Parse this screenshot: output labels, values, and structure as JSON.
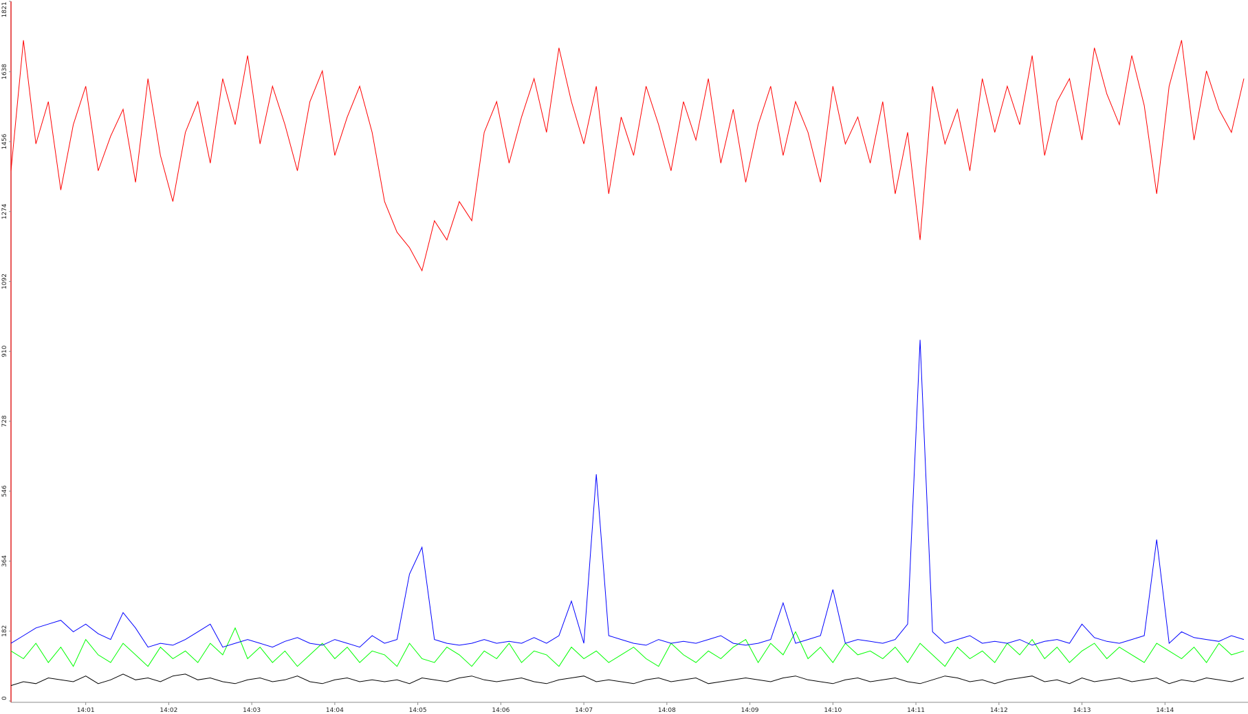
{
  "chart_data": {
    "type": "line",
    "x": [
      0.1,
      0.25,
      0.4,
      0.55,
      0.7,
      0.85,
      1,
      1.15,
      1.3,
      1.45,
      1.6,
      1.75,
      1.9,
      2.05,
      2.2,
      2.35,
      2.5,
      2.65,
      2.8,
      2.95,
      3.1,
      3.25,
      3.4,
      3.55,
      3.7,
      3.85,
      4,
      4.15,
      4.3,
      4.45,
      4.6,
      4.75,
      4.9,
      5.05,
      5.2,
      5.35,
      5.5,
      5.65,
      5.8,
      5.95,
      6.1,
      6.25,
      6.4,
      6.55,
      6.7,
      6.85,
      7,
      7.15,
      7.3,
      7.45,
      7.6,
      7.75,
      7.9,
      8.05,
      8.2,
      8.35,
      8.5,
      8.65,
      8.8,
      8.95,
      9.1,
      9.25,
      9.4,
      9.55,
      9.7,
      9.85,
      10,
      10.15,
      10.3,
      10.45,
      10.6,
      10.75,
      10.9,
      11.05,
      11.2,
      11.35,
      11.5,
      11.65,
      11.8,
      11.95,
      12.1,
      12.25,
      12.4,
      12.55,
      12.7,
      12.85,
      13,
      13.15,
      13.3,
      13.45,
      13.6,
      13.75,
      13.9,
      14.05,
      14.2,
      14.35,
      14.5,
      14.65,
      14.8,
      14.95
    ],
    "series": [
      {
        "color": "#ff0000",
        "values": [
          1380,
          1720,
          1450,
          1560,
          1330,
          1500,
          1600,
          1380,
          1470,
          1540,
          1350,
          1620,
          1420,
          1300,
          1480,
          1560,
          1400,
          1620,
          1500,
          1680,
          1450,
          1600,
          1500,
          1380,
          1560,
          1640,
          1420,
          1520,
          1600,
          1480,
          1300,
          1220,
          1180,
          1120,
          1250,
          1200,
          1300,
          1250,
          1480,
          1560,
          1400,
          1520,
          1620,
          1480,
          1700,
          1560,
          1450,
          1600,
          1320,
          1520,
          1420,
          1600,
          1500,
          1380,
          1560,
          1460,
          1620,
          1400,
          1540,
          1350,
          1500,
          1600,
          1420,
          1560,
          1480,
          1350,
          1600,
          1450,
          1520,
          1400,
          1560,
          1320,
          1480,
          1200,
          1600,
          1450,
          1540,
          1380,
          1620,
          1480,
          1600,
          1500,
          1680,
          1420,
          1560,
          1620,
          1460,
          1700,
          1580,
          1500,
          1680,
          1550,
          1320,
          1600,
          1720,
          1460,
          1640,
          1540,
          1480,
          1620
        ]
      },
      {
        "color": "#00ff00",
        "values": [
          130,
          110,
          150,
          100,
          140,
          90,
          160,
          120,
          100,
          150,
          120,
          90,
          140,
          110,
          130,
          100,
          150,
          120,
          190,
          110,
          140,
          100,
          130,
          90,
          120,
          150,
          110,
          140,
          100,
          130,
          120,
          90,
          150,
          110,
          100,
          140,
          120,
          90,
          130,
          110,
          150,
          100,
          130,
          120,
          90,
          140,
          110,
          130,
          100,
          120,
          140,
          110,
          90,
          150,
          120,
          100,
          130,
          110,
          140,
          160,
          100,
          150,
          120,
          180,
          110,
          140,
          100,
          150,
          120,
          130,
          110,
          140,
          100,
          150,
          120,
          90,
          140,
          110,
          130,
          100,
          150,
          120,
          160,
          110,
          140,
          100,
          130,
          150,
          110,
          140,
          120,
          100,
          150,
          130,
          110,
          140,
          100,
          150,
          120,
          130
        ]
      },
      {
        "color": "#0000ff",
        "values": [
          150,
          170,
          190,
          200,
          210,
          180,
          200,
          175,
          160,
          230,
          190,
          140,
          150,
          145,
          160,
          180,
          200,
          140,
          150,
          160,
          150,
          140,
          155,
          165,
          150,
          145,
          160,
          150,
          140,
          170,
          150,
          160,
          330,
          400,
          160,
          150,
          145,
          150,
          160,
          150,
          155,
          150,
          165,
          150,
          170,
          260,
          150,
          590,
          170,
          160,
          150,
          145,
          160,
          150,
          155,
          150,
          160,
          170,
          150,
          145,
          150,
          160,
          255,
          150,
          160,
          170,
          290,
          150,
          160,
          155,
          150,
          160,
          200,
          940,
          180,
          150,
          160,
          170,
          150,
          155,
          150,
          160,
          145,
          155,
          160,
          150,
          200,
          165,
          155,
          150,
          160,
          170,
          420,
          150,
          180,
          165,
          160,
          155,
          170,
          160
        ]
      },
      {
        "color": "#000000",
        "values": [
          40,
          50,
          45,
          60,
          55,
          50,
          65,
          45,
          55,
          70,
          55,
          60,
          50,
          65,
          70,
          55,
          60,
          50,
          45,
          55,
          60,
          50,
          55,
          65,
          50,
          45,
          55,
          60,
          50,
          55,
          50,
          55,
          45,
          60,
          55,
          50,
          60,
          65,
          55,
          50,
          55,
          60,
          50,
          45,
          55,
          60,
          65,
          50,
          55,
          50,
          45,
          55,
          60,
          50,
          55,
          60,
          45,
          50,
          55,
          60,
          55,
          50,
          60,
          65,
          55,
          50,
          45,
          55,
          60,
          50,
          55,
          60,
          50,
          45,
          55,
          65,
          60,
          50,
          55,
          45,
          55,
          60,
          65,
          50,
          55,
          45,
          60,
          50,
          55,
          60,
          50,
          55,
          60,
          45,
          55,
          50,
          60,
          55,
          50,
          60
        ]
      }
    ],
    "xlim": [
      0.1,
      15
    ],
    "xticks": [
      {
        "value": 1,
        "label": "14:01"
      },
      {
        "value": 2,
        "label": "14:02"
      },
      {
        "value": 3,
        "label": "14:03"
      },
      {
        "value": 4,
        "label": "14:04"
      },
      {
        "value": 5,
        "label": "14:05"
      },
      {
        "value": 6,
        "label": "14:06"
      },
      {
        "value": 7,
        "label": "14:07"
      },
      {
        "value": 8,
        "label": "14:08"
      },
      {
        "value": 9,
        "label": "14:09"
      },
      {
        "value": 10,
        "label": "14:10"
      },
      {
        "value": 11,
        "label": "14:11"
      },
      {
        "value": 12,
        "label": "14:12"
      },
      {
        "value": 13,
        "label": "14:13"
      },
      {
        "value": 14,
        "label": "14:14"
      }
    ],
    "ylim": [
      0,
      1821
    ],
    "yticks": [
      0,
      182,
      364,
      546,
      728,
      910,
      1092,
      1274,
      1456,
      1638,
      1821
    ]
  }
}
